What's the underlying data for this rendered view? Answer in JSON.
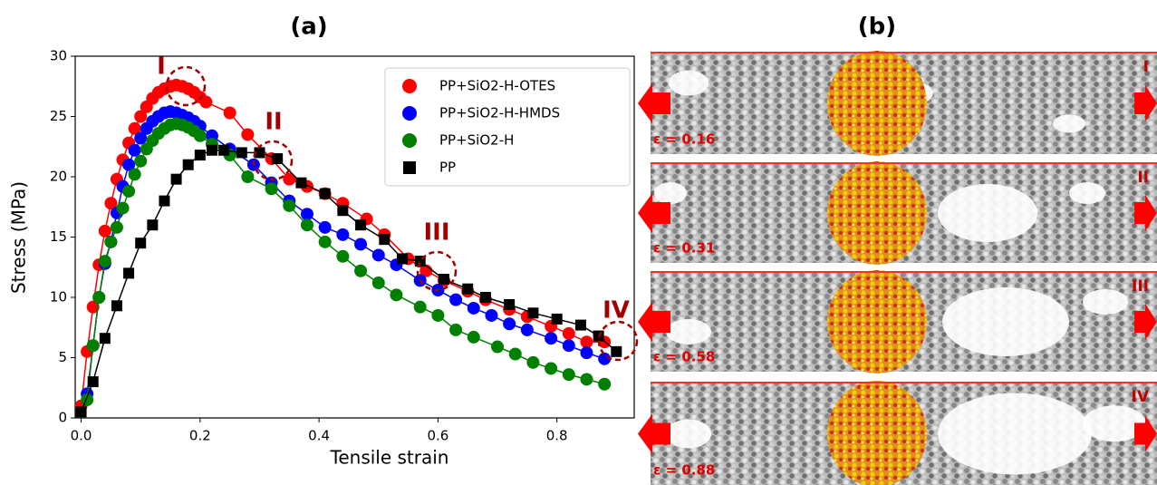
{
  "chart_data": {
    "type": "line",
    "title": "(a)",
    "x_label": "Tensile strain",
    "y_label": "Stress (MPa)",
    "xlim": [
      -0.01,
      0.93
    ],
    "ylim": [
      0,
      30
    ],
    "xticks": [
      {
        "value": 0,
        "label": "0.0"
      },
      0.2,
      0.4,
      0.6,
      0.8
    ],
    "yticks": [
      0,
      5,
      10,
      15,
      20,
      25,
      30
    ],
    "legend": "upper right",
    "series": [
      {
        "name": "PP+SiO2-H-OTES",
        "color": "#ff0000",
        "marker": "circle",
        "x": [
          0,
          0.01,
          0.02,
          0.03,
          0.04,
          0.05,
          0.06,
          0.07,
          0.08,
          0.09,
          0.1,
          0.11,
          0.12,
          0.13,
          0.14,
          0.15,
          0.16,
          0.17,
          0.18,
          0.19,
          0.2,
          0.21,
          0.25,
          0.28,
          0.32,
          0.35,
          0.38,
          0.41,
          0.44,
          0.48,
          0.51,
          0.55,
          0.58,
          0.61,
          0.65,
          0.68,
          0.72,
          0.75,
          0.79,
          0.82,
          0.85,
          0.88
        ],
        "values": [
          1,
          5.5,
          9.2,
          12.7,
          15.5,
          17.8,
          19.8,
          21.4,
          22.8,
          24,
          25,
          25.8,
          26.5,
          27,
          27.3,
          27.5,
          27.6,
          27.5,
          27.3,
          27,
          26.6,
          26.2,
          25.3,
          23.5,
          21.5,
          19.8,
          19.2,
          18.6,
          17.8,
          16.5,
          15.2,
          13.2,
          12.2,
          11.4,
          10.5,
          9.8,
          9,
          8.4,
          7.6,
          7,
          6.3,
          6.3
        ]
      },
      {
        "name": "PP+SiO2-H-HMDS",
        "color": "#0000ff",
        "marker": "circle",
        "x": [
          0.01,
          0.02,
          0.03,
          0.04,
          0.05,
          0.06,
          0.07,
          0.08,
          0.09,
          0.1,
          0.11,
          0.12,
          0.13,
          0.14,
          0.15,
          0.16,
          0.17,
          0.18,
          0.19,
          0.2,
          0.22,
          0.25,
          0.29,
          0.32,
          0.35,
          0.38,
          0.41,
          0.44,
          0.47,
          0.5,
          0.53,
          0.57,
          0.6,
          0.63,
          0.66,
          0.69,
          0.72,
          0.75,
          0.79,
          0.82,
          0.85,
          0.88
        ],
        "values": [
          2,
          6,
          10,
          12.8,
          14.6,
          17,
          19.2,
          21,
          22.2,
          23.2,
          24,
          24.6,
          25,
          25.3,
          25.4,
          25.3,
          25.1,
          24.9,
          24.6,
          24.2,
          23.4,
          22.3,
          21,
          19.5,
          18,
          16.9,
          15.8,
          15.2,
          14.4,
          13.5,
          12.7,
          11.4,
          10.6,
          9.8,
          9.1,
          8.5,
          7.8,
          7.3,
          6.6,
          6,
          5.4,
          4.9
        ]
      },
      {
        "name": "PP+SiO2-H",
        "color": "#008000",
        "marker": "circle",
        "x": [
          0.01,
          0.02,
          0.03,
          0.04,
          0.05,
          0.06,
          0.07,
          0.08,
          0.09,
          0.1,
          0.11,
          0.12,
          0.13,
          0.14,
          0.15,
          0.16,
          0.17,
          0.18,
          0.19,
          0.2,
          0.22,
          0.25,
          0.28,
          0.32,
          0.35,
          0.38,
          0.41,
          0.44,
          0.47,
          0.5,
          0.53,
          0.57,
          0.6,
          0.63,
          0.66,
          0.7,
          0.73,
          0.76,
          0.79,
          0.82,
          0.85,
          0.88
        ],
        "values": [
          1.5,
          6,
          10,
          13,
          14.6,
          15.8,
          17.4,
          18.8,
          20.2,
          21.3,
          22.3,
          23,
          23.6,
          24,
          24.3,
          24.4,
          24.3,
          24.1,
          23.8,
          23.4,
          22.7,
          21.8,
          20,
          19,
          17.6,
          16,
          14.6,
          13.4,
          12.2,
          11.2,
          10.2,
          9.2,
          8.5,
          7.3,
          6.7,
          5.9,
          5.3,
          4.6,
          4.1,
          3.6,
          3.2,
          2.8
        ]
      },
      {
        "name": "PP",
        "color": "#000000",
        "marker": "square",
        "x": [
          0,
          0.02,
          0.04,
          0.06,
          0.08,
          0.1,
          0.12,
          0.14,
          0.16,
          0.18,
          0.2,
          0.22,
          0.24,
          0.27,
          0.3,
          0.33,
          0.37,
          0.41,
          0.44,
          0.47,
          0.51,
          0.54,
          0.57,
          0.61,
          0.65,
          0.68,
          0.72,
          0.76,
          0.8,
          0.84,
          0.87,
          0.9
        ],
        "values": [
          0.5,
          3,
          6.6,
          9.3,
          12,
          14.5,
          16,
          18,
          19.8,
          21,
          21.8,
          22.2,
          22.2,
          22,
          22,
          21.5,
          19.5,
          18.6,
          17.2,
          16,
          14.8,
          13.2,
          13,
          11.5,
          10.7,
          10,
          9.4,
          8.7,
          8.2,
          7.7,
          6.8,
          5.5
        ]
      }
    ],
    "annotations": [
      "I",
      "II",
      "III",
      "IV"
    ]
  },
  "panel_b": {
    "title": "(b)",
    "frames": [
      {
        "label": "I",
        "strain_label": "ε = 0.16"
      },
      {
        "label": "II",
        "strain_label": "ε = 0.31"
      },
      {
        "label": "III",
        "strain_label": "ε = 0.58"
      },
      {
        "label": "IV",
        "strain_label": "ε = 0.88"
      }
    ]
  }
}
